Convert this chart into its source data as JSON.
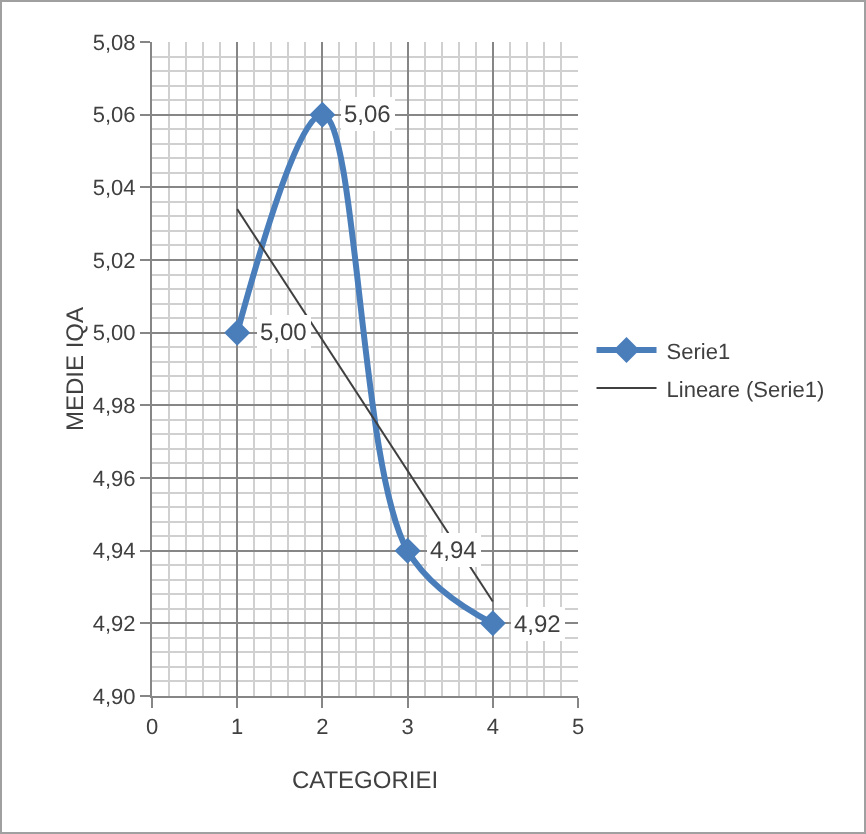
{
  "chart_data": {
    "type": "line",
    "xlabel": "CATEGORIEI",
    "ylabel": "MEDIE IQA",
    "x": [
      1,
      2,
      3,
      4
    ],
    "series": [
      {
        "name": "Serie1",
        "color": "#4a7ebb",
        "values": [
          5.0,
          5.06,
          4.94,
          4.92
        ],
        "value_labels": [
          "5,00",
          "5,06",
          "4,94",
          "4,92"
        ],
        "marker": "diamond"
      },
      {
        "name": "Lineare (Serie1)",
        "color": "#404040",
        "x": [
          1,
          4
        ],
        "values": [
          5.034,
          4.926
        ],
        "marker": "none"
      }
    ],
    "xlim": [
      0,
      5
    ],
    "xticks": [
      0,
      1,
      2,
      3,
      4,
      5
    ],
    "ylim": [
      4.9,
      5.08
    ],
    "yticks": [
      {
        "value": 4.9,
        "label": "4,90"
      },
      {
        "value": 4.92,
        "label": "4,92"
      },
      {
        "value": 4.94,
        "label": "4,94"
      },
      {
        "value": 4.96,
        "label": "4,96"
      },
      {
        "value": 4.98,
        "label": "4,98"
      },
      {
        "value": 5.0,
        "label": "5,00"
      },
      {
        "value": 5.02,
        "label": "5,02"
      },
      {
        "value": 5.04,
        "label": "5,04"
      },
      {
        "value": 5.06,
        "label": "5,06"
      },
      {
        "value": 5.08,
        "label": "5,08"
      }
    ],
    "grid": true,
    "legend": "right"
  }
}
